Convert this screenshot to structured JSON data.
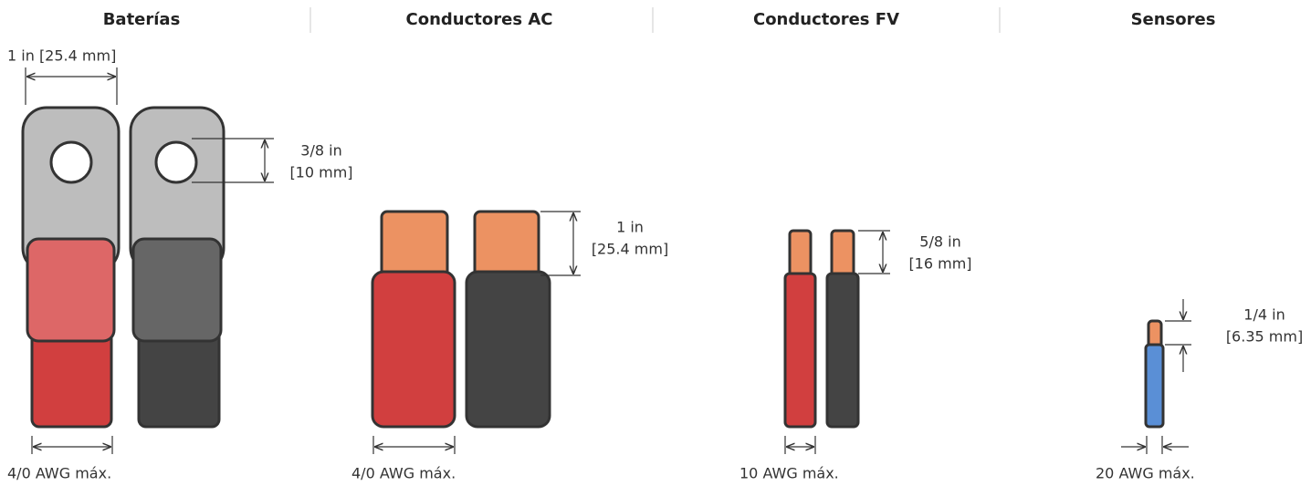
{
  "columns": [
    {
      "title": "Baterías",
      "dimension_top": "1 in [25.4 mm]",
      "dimension_side": [
        "3/8 in",
        "[10 mm]"
      ],
      "gauge": "4/0 AWG máx."
    },
    {
      "title": "Conductores AC",
      "dimension_side": [
        "1 in",
        "[25.4 mm]"
      ],
      "gauge": "4/0 AWG máx."
    },
    {
      "title": "Conductores FV",
      "dimension_side": [
        "5/8 in",
        "[16 mm]"
      ],
      "gauge": "10 AWG máx."
    },
    {
      "title": "Sensores",
      "dimension_side": [
        "1/4 in",
        "[6.35 mm]"
      ],
      "gauge": "20 AWG máx."
    }
  ]
}
